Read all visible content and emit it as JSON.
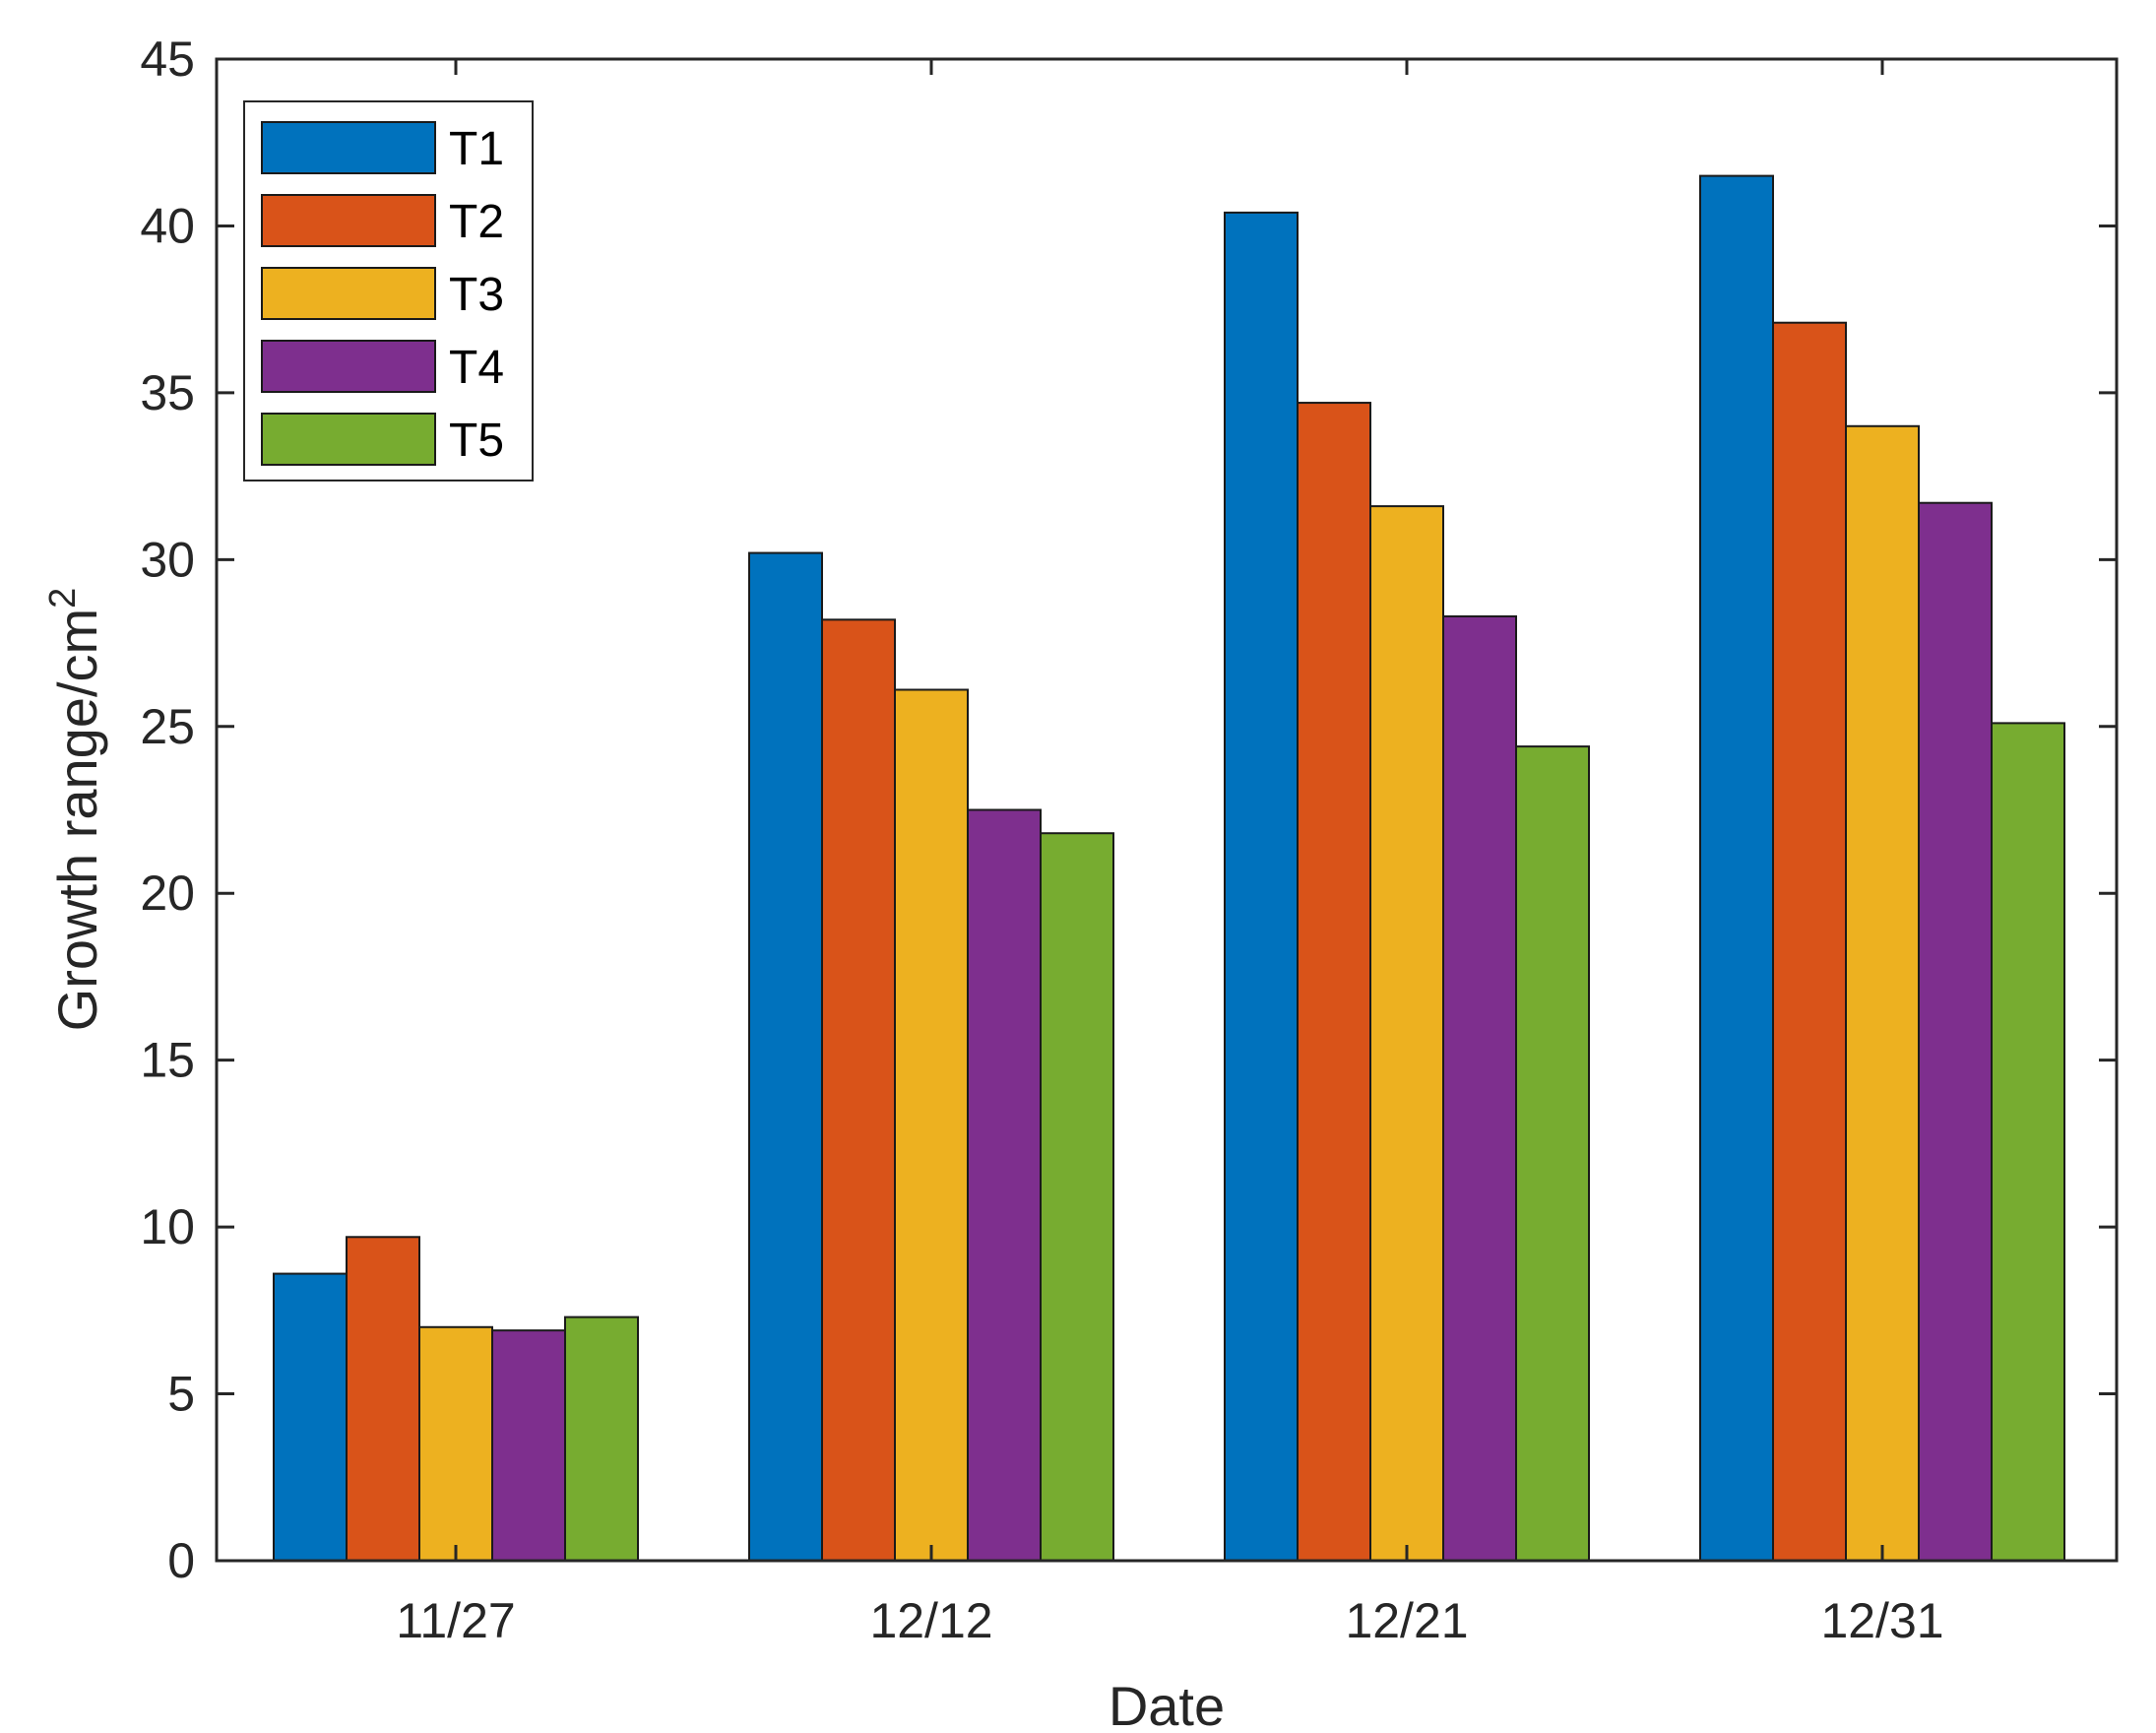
{
  "chart_data": {
    "type": "bar",
    "categories": [
      "11/27",
      "12/12",
      "12/21",
      "12/31"
    ],
    "series": [
      {
        "name": "T1",
        "color": "#0072BD",
        "values": [
          8.6,
          30.2,
          40.4,
          41.5
        ]
      },
      {
        "name": "T2",
        "color": "#D95319",
        "values": [
          9.7,
          28.2,
          34.7,
          37.1
        ]
      },
      {
        "name": "T3",
        "color": "#EDB120",
        "values": [
          7.0,
          26.1,
          31.6,
          34.0
        ]
      },
      {
        "name": "T4",
        "color": "#7E2F8E",
        "values": [
          6.9,
          22.5,
          28.3,
          31.7
        ]
      },
      {
        "name": "T5",
        "color": "#77AC30",
        "values": [
          7.3,
          21.8,
          24.4,
          25.1
        ]
      }
    ],
    "ylim": [
      0,
      45
    ],
    "yticks": [
      0,
      5,
      10,
      15,
      20,
      25,
      30,
      35,
      40,
      45
    ],
    "xlabel": "Date",
    "ylabel": "Growth range/cm",
    "ylabel_superscript": "2",
    "legend_position": "top-left",
    "grid": false
  }
}
